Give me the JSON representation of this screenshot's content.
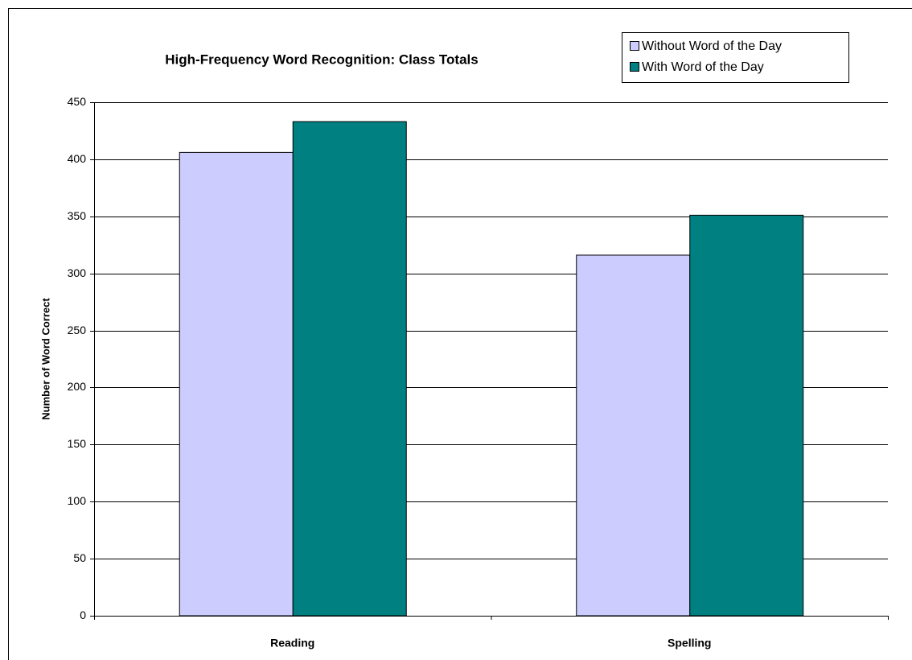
{
  "chart_data": {
    "type": "bar",
    "title": "High-Frequency Word Recognition:  Class Totals",
    "y_label": "Number of Word Correct",
    "categories": [
      "Reading",
      "Spelling"
    ],
    "series": [
      {
        "name": "Without Word of the Day",
        "color": "#ccccff",
        "values": [
          406,
          316
        ]
      },
      {
        "name": "With Word of the Day",
        "color": "#008080",
        "values": [
          433,
          351
        ]
      }
    ],
    "ylim": [
      0,
      450
    ],
    "yticks": [
      0,
      50,
      100,
      150,
      200,
      250,
      300,
      350,
      400,
      450
    ],
    "grid": true,
    "legend": "upper right"
  }
}
